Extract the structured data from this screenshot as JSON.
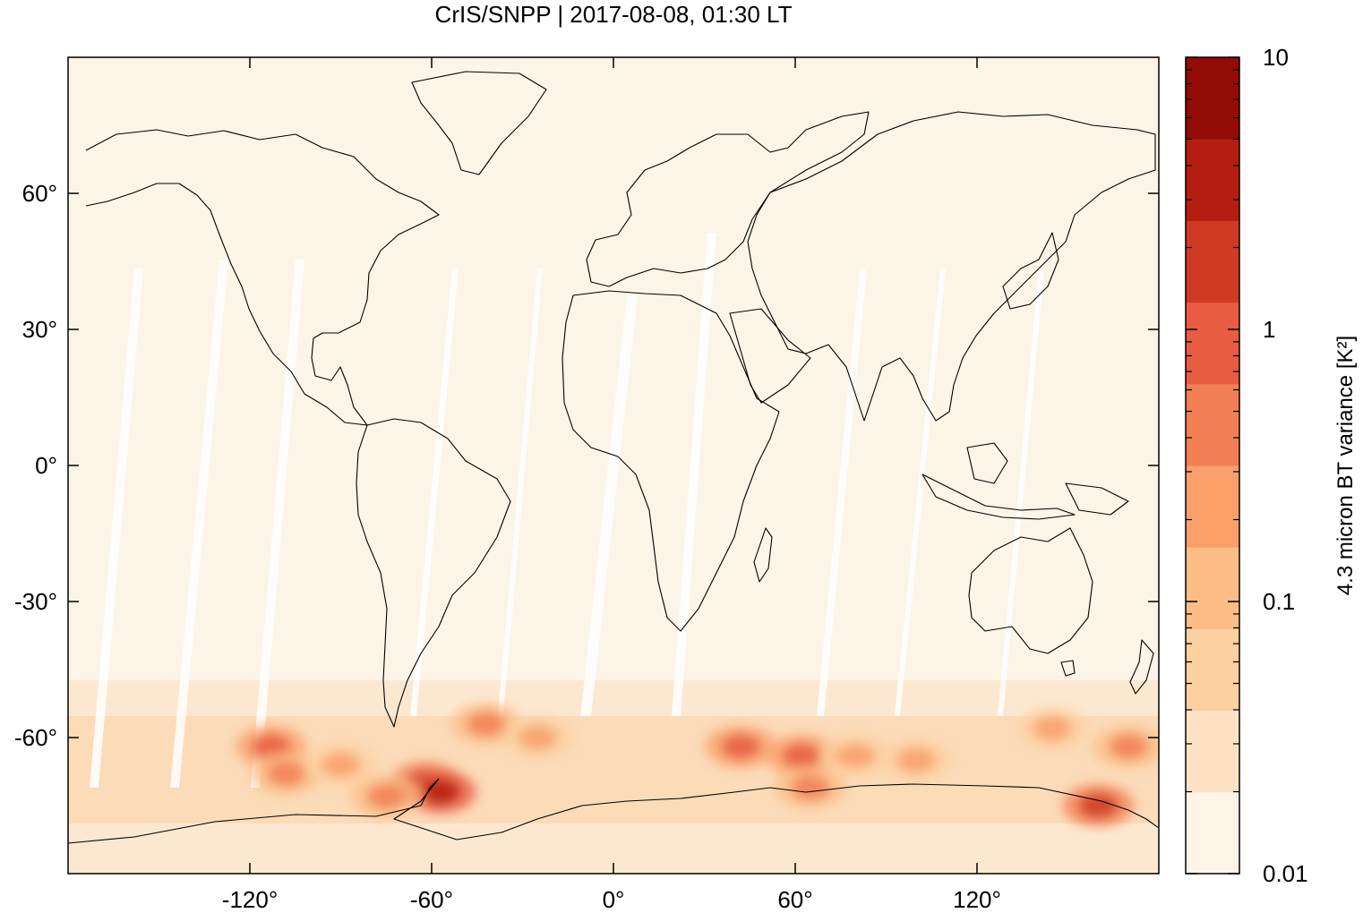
{
  "title": "CrIS/SNPP | 2017-08-08, 01:30 LT",
  "map": {
    "projection": "equirectangular",
    "lon_range": [
      -180,
      180
    ],
    "lat_range": [
      -90,
      90
    ],
    "lon_ticks": [
      {
        "value": -120,
        "label": "-120°"
      },
      {
        "value": -60,
        "label": "-60°"
      },
      {
        "value": 0,
        "label": "0°"
      },
      {
        "value": 60,
        "label": "60°"
      },
      {
        "value": 120,
        "label": "120°"
      }
    ],
    "lat_ticks": [
      {
        "value": 60,
        "label": "60°"
      },
      {
        "value": 30,
        "label": "30°"
      },
      {
        "value": 0,
        "label": "0°"
      },
      {
        "value": -30,
        "label": "-30°"
      },
      {
        "value": -60,
        "label": "-60°"
      }
    ],
    "coastline_color": "#000000",
    "background_color": "#fdf4e8",
    "hotspots": [
      {
        "lon": -113,
        "lat": -62,
        "level": 0.7
      },
      {
        "lon": -108,
        "lat": -68,
        "level": 0.55
      },
      {
        "lon": -90,
        "lat": -66,
        "level": 0.35
      },
      {
        "lon": -62,
        "lat": -70,
        "level": 0.85
      },
      {
        "lon": -57,
        "lat": -72,
        "level": 1.0
      },
      {
        "lon": -75,
        "lat": -73,
        "level": 0.45
      },
      {
        "lon": -42,
        "lat": -57,
        "level": 0.45
      },
      {
        "lon": -25,
        "lat": -60,
        "level": 0.35
      },
      {
        "lon": 42,
        "lat": -62,
        "level": 0.6
      },
      {
        "lon": 62,
        "lat": -64,
        "level": 0.6
      },
      {
        "lon": 65,
        "lat": -71,
        "level": 0.5
      },
      {
        "lon": 80,
        "lat": -64,
        "level": 0.35
      },
      {
        "lon": 100,
        "lat": -65,
        "level": 0.3
      },
      {
        "lon": 160,
        "lat": -75,
        "level": 0.8
      },
      {
        "lon": 170,
        "lat": -62,
        "level": 0.45
      },
      {
        "lon": 145,
        "lat": -58,
        "level": 0.35
      }
    ]
  },
  "colorbar": {
    "label": "4.3 micron BT variance [K²]",
    "scale": "log",
    "range": [
      0.01,
      10
    ],
    "ticks": [
      {
        "value": 10,
        "label": "10"
      },
      {
        "value": 1,
        "label": "1"
      },
      {
        "value": 0.1,
        "label": "0.1"
      },
      {
        "value": 0.01,
        "label": "0.01"
      }
    ],
    "colors": [
      "#fef4e8",
      "#fde3c4",
      "#fcd0a0",
      "#fbbd85",
      "#f9a06a",
      "#f27f54",
      "#e75c42",
      "#d03a25",
      "#b51d12",
      "#930c06"
    ]
  }
}
